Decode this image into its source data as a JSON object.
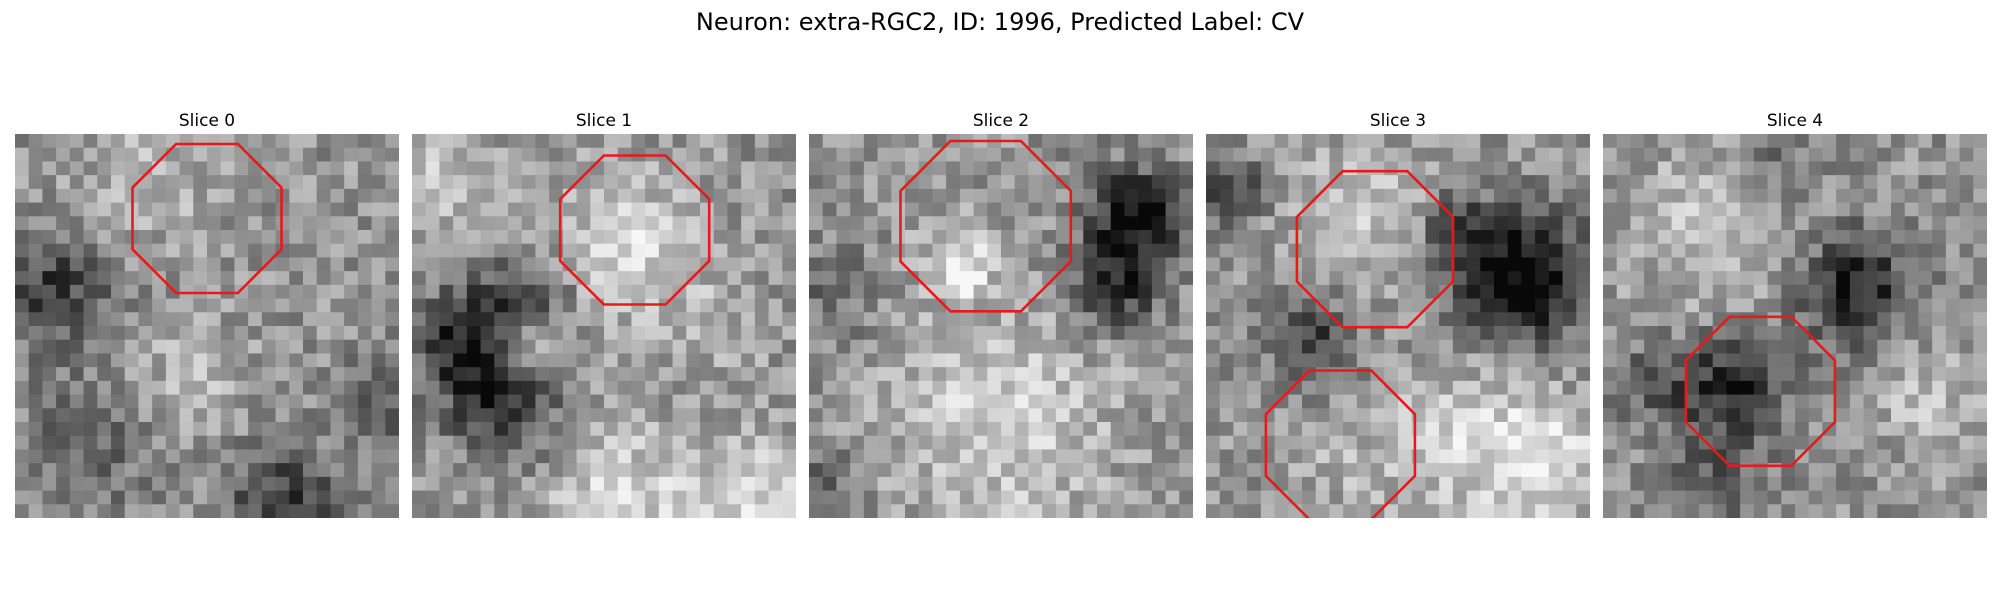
{
  "figure": {
    "title": "Neuron: extra-RGC2, ID: 1996, Predicted Label: CV"
  },
  "panels": [
    {
      "title": "Slice 0",
      "highlight": {
        "shape": "octagon",
        "color": "#e8191a"
      }
    },
    {
      "title": "Slice 1",
      "highlight": {
        "shape": "octagon",
        "color": "#e8191a"
      }
    },
    {
      "title": "Slice 2",
      "highlight": {
        "shape": "octagon",
        "color": "#e8191a"
      }
    },
    {
      "title": "Slice 3",
      "highlight": {
        "shape": "octagon",
        "color": "#e8191a"
      }
    },
    {
      "title": "Slice 4",
      "highlight": {
        "shape": "octagon",
        "color": "#e8191a"
      }
    }
  ],
  "image_style": {
    "colormap": "grayscale"
  }
}
